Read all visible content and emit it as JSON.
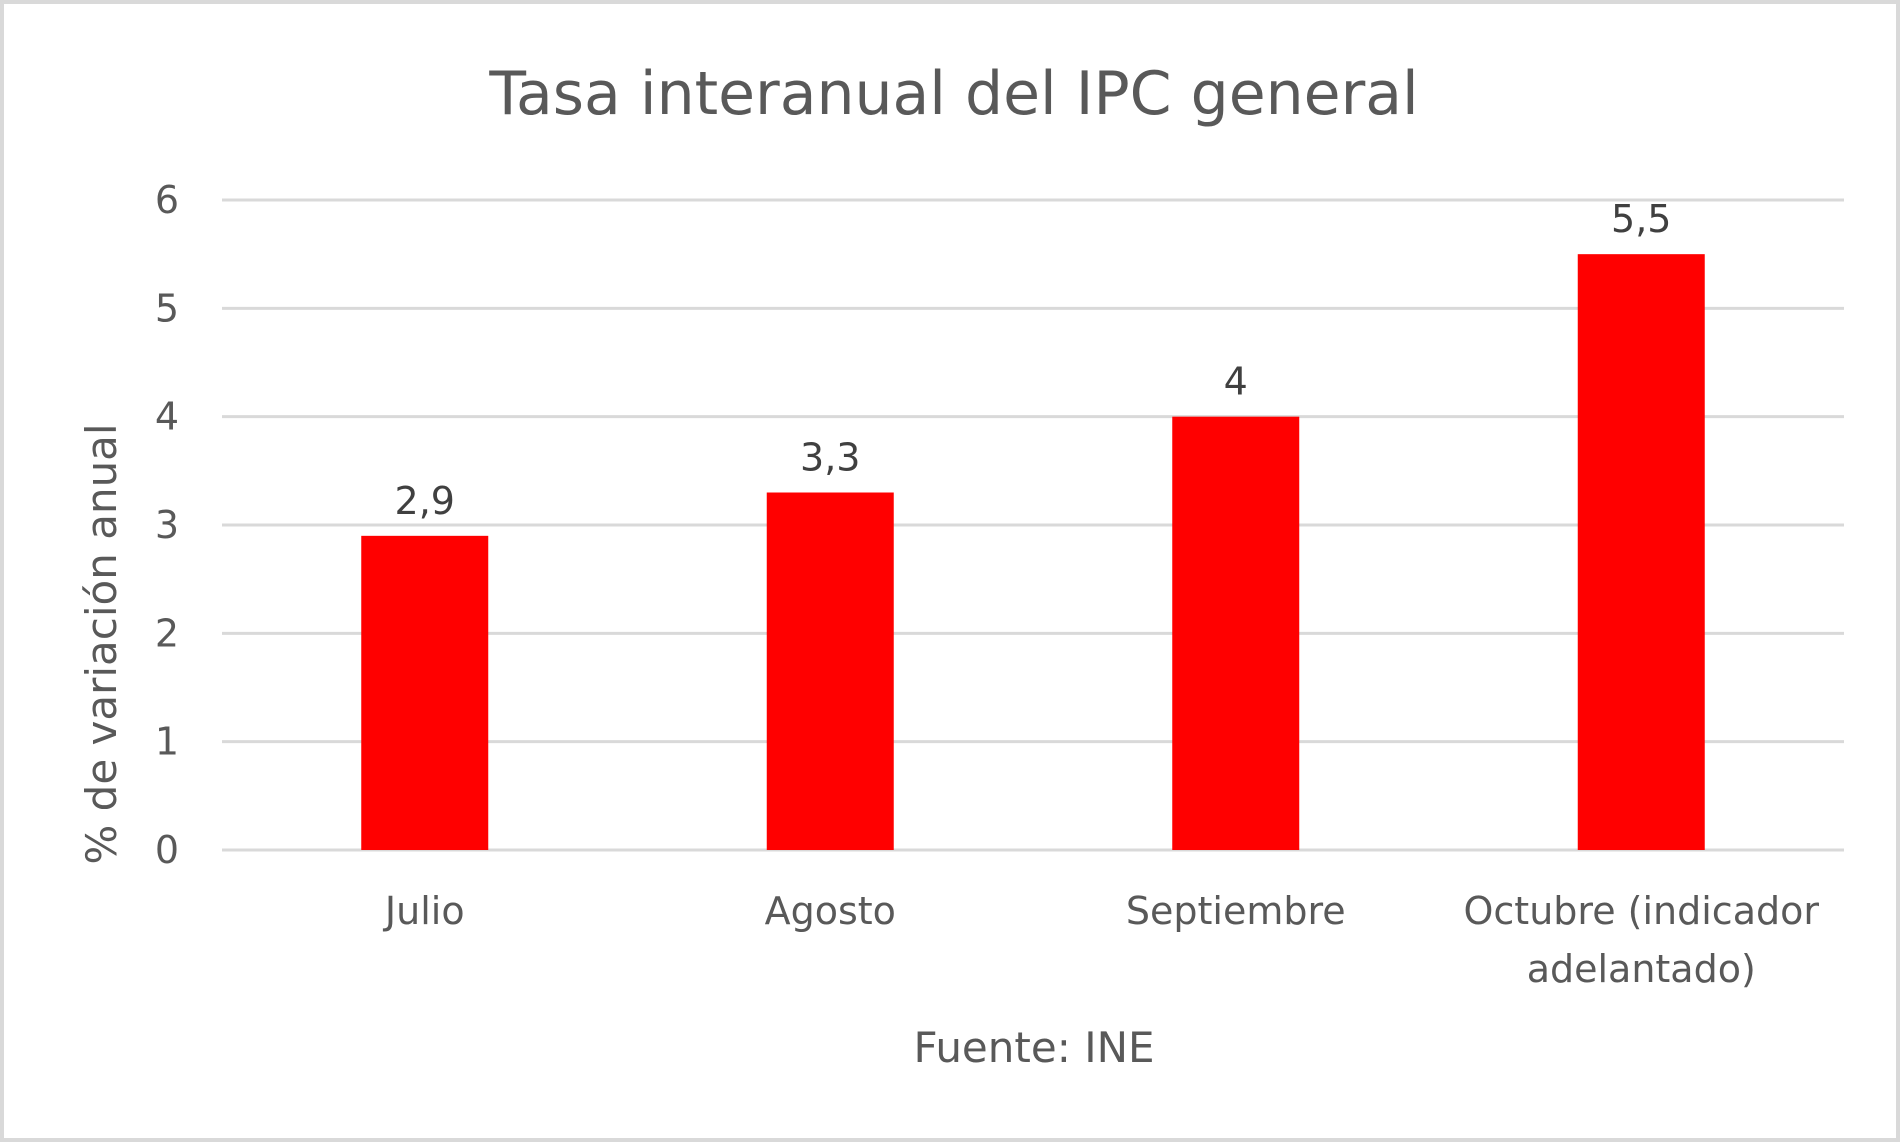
{
  "chart_data": {
    "type": "bar",
    "title": "Tasa interanual del IPC general",
    "xlabel": "Fuente: INE",
    "ylabel": "% de variación anual",
    "categories": [
      "Julio",
      "Agosto",
      "Septiembre",
      "Octubre (indicador adelantado)"
    ],
    "category_lines": [
      [
        "Julio"
      ],
      [
        "Agosto"
      ],
      [
        "Septiembre"
      ],
      [
        "Octubre (indicador",
        "adelantado)"
      ]
    ],
    "values": [
      2.9,
      3.3,
      4,
      5.5
    ],
    "data_labels": [
      "2,9",
      "3,3",
      "4",
      "5,5"
    ],
    "ylim": [
      0,
      6
    ],
    "yticks": [
      0,
      1,
      2,
      3,
      4,
      5,
      6
    ],
    "grid": true,
    "legend": "none",
    "bar_color": "#ff0000"
  }
}
